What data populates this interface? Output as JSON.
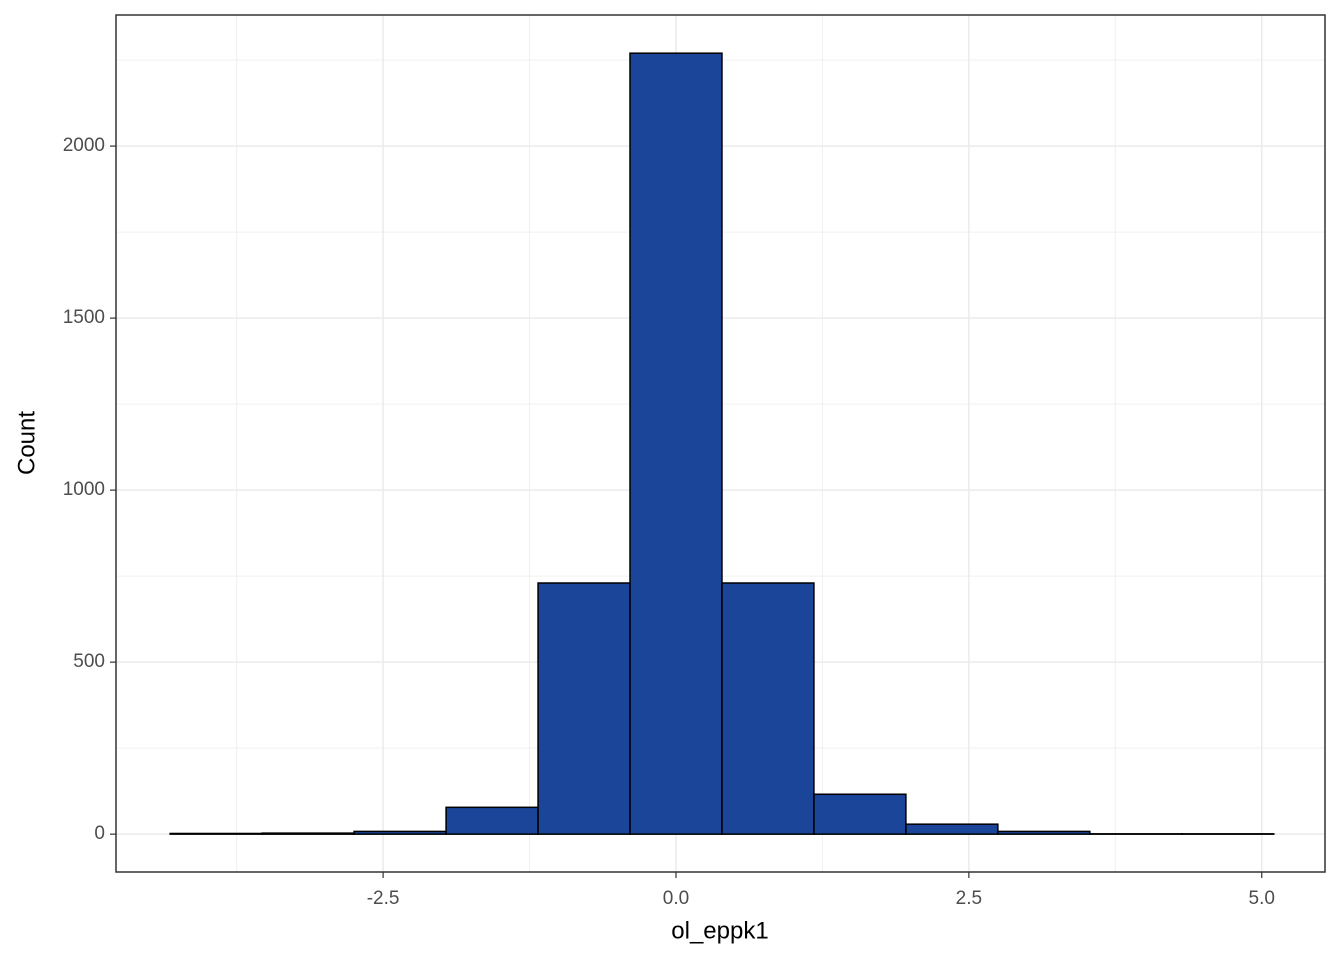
{
  "chart_data": {
    "type": "histogram",
    "x_label": "ol_eppk1",
    "y_label": "Count",
    "bins": [
      -4.3175,
      -3.5325,
      -2.7475,
      -1.9625,
      -1.1775,
      -0.3925,
      0.3925,
      1.1775,
      1.9625,
      2.7475,
      3.5325,
      4.3175,
      5.1025
    ],
    "values": [
      2,
      3,
      8,
      78,
      730,
      2270,
      730,
      116,
      29,
      8,
      1,
      1
    ],
    "color": "#1a4599",
    "edge_color": "#000000",
    "xlim": [
      -4.78,
      5.54
    ],
    "ylim": [
      -110,
      2381
    ],
    "xticks": [
      -2.5,
      {
        "value": 0,
        "label": "0.0"
      },
      2.5,
      {
        "value": 5,
        "label": "5.0"
      }
    ],
    "yticks": [
      0,
      500,
      1000,
      1500,
      2000
    ],
    "grid": true
  }
}
